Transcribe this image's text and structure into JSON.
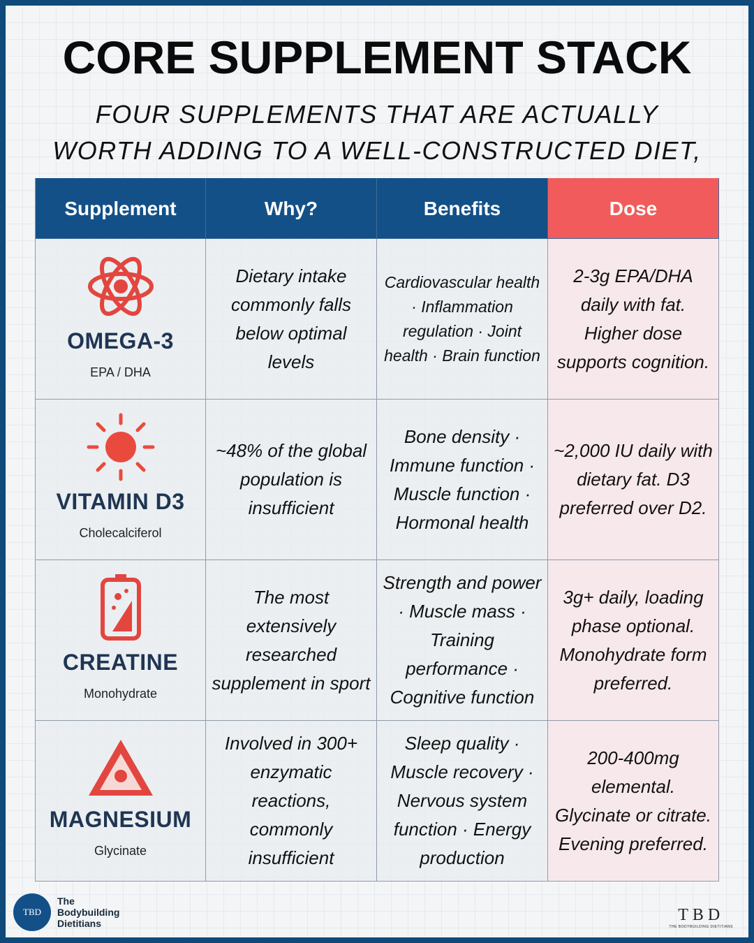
{
  "header": {
    "title": "CORE SUPPLEMENT STACK",
    "subtitle": "FOUR SUPPLEMENTS THAT ARE ACTUALLY WORTH ADDING TO A WELL-CONSTRUCTED DIET, AND WHY"
  },
  "table": {
    "columns": [
      "Supplement",
      "Why?",
      "Benefits",
      "Dose"
    ],
    "rows": [
      {
        "name": "OMEGA-3",
        "form": "EPA / DHA",
        "why": "Dietary intake commonly falls below optimal levels",
        "benefits": "Cardiovascular health · Inflammation regulation · Joint health · Brain function",
        "dose": "2-3g EPA/DHA daily with fat. Higher dose supports cognition."
      },
      {
        "name": "VITAMIN D3",
        "form": "Cholecalciferol",
        "why": "~48% of the global population is insufficient",
        "benefits": "Bone density · Immune function · Muscle function · Hormonal health",
        "dose": "~2,000 IU daily with dietary fat. D3 preferred over D2."
      },
      {
        "name": "CREATINE",
        "form": "Monohydrate",
        "why": "The most extensively researched supplement in sport",
        "benefits": "Strength and power · Muscle mass · Training performance · Cognitive function",
        "dose": "3g+ daily, loading phase optional. Monohydrate form preferred."
      },
      {
        "name": "MAGNESIUM",
        "form": "Glycinate",
        "why": "Involved in 300+ enzymatic reactions, commonly insufficient",
        "benefits": "Sleep quality · Muscle recovery · Nervous system function · Energy production",
        "dose": "200-400mg elemental. Glycinate or citrate. Evening preferred."
      }
    ]
  },
  "footer": {
    "logo_left": "TBD",
    "brand": [
      "The",
      "Bodybuilding",
      "Dietitians"
    ],
    "logo_right": "TBD",
    "logo_right_sub": "THE BODYBUILDING DIETITIANS"
  }
}
